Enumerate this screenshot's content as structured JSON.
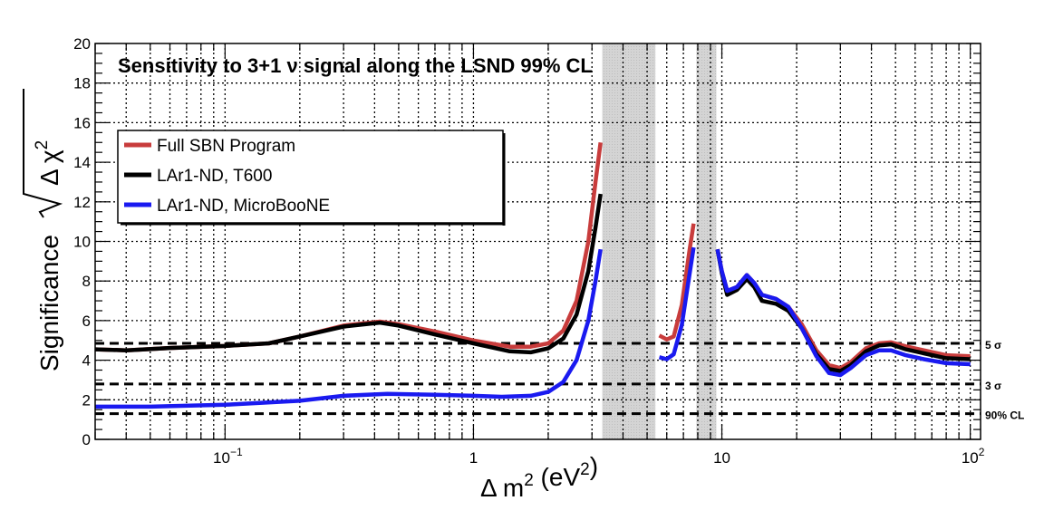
{
  "chart_data": {
    "type": "line",
    "title": "Sensitivity to 3+1 ν signal along the LSND 99% CL",
    "xlabel": "Δ m² (eV²)",
    "ylabel": "Significance √Δ χ²",
    "x_scale": "log",
    "xlim": [
      0.03,
      110
    ],
    "ylim": [
      0,
      20
    ],
    "y_ticks": [
      "0",
      "2",
      "4",
      "6",
      "8",
      "10",
      "12",
      "14",
      "16",
      "18",
      "20"
    ],
    "x_ticks": [
      {
        "value": 0.1,
        "base": "10",
        "exp": "−1"
      },
      {
        "value": 1,
        "base": "1",
        "exp": ""
      },
      {
        "value": 10,
        "base": "10",
        "exp": ""
      },
      {
        "value": 100,
        "base": "10",
        "exp": "2"
      }
    ],
    "grid": true,
    "legend_position": "upper-left",
    "series": [
      {
        "name": "Full SBN Program",
        "color": "#c83c3c",
        "segments": [
          [
            [
              0.03,
              4.55
            ],
            [
              0.04,
              4.5
            ],
            [
              0.06,
              4.62
            ],
            [
              0.1,
              4.72
            ],
            [
              0.15,
              4.85
            ],
            [
              0.2,
              5.2
            ],
            [
              0.3,
              5.75
            ],
            [
              0.42,
              5.95
            ],
            [
              0.5,
              5.82
            ],
            [
              0.7,
              5.45
            ],
            [
              1.0,
              5.0
            ],
            [
              1.4,
              4.68
            ],
            [
              1.7,
              4.68
            ],
            [
              2.0,
              4.85
            ],
            [
              2.3,
              5.5
            ],
            [
              2.6,
              7.0
            ],
            [
              2.9,
              10.0
            ],
            [
              3.1,
              13.0
            ],
            [
              3.25,
              15.0
            ]
          ],
          [
            [
              5.6,
              5.25
            ],
            [
              6.0,
              5.05
            ],
            [
              6.4,
              5.2
            ],
            [
              6.9,
              6.8
            ],
            [
              7.4,
              9.5
            ],
            [
              7.7,
              10.9
            ]
          ],
          [
            [
              9.6,
              9.6
            ],
            [
              10.0,
              8.5
            ],
            [
              10.5,
              7.5
            ],
            [
              11.5,
              7.7
            ],
            [
              12.6,
              8.3
            ],
            [
              13.5,
              7.9
            ],
            [
              14.5,
              7.3
            ],
            [
              16.5,
              7.1
            ],
            [
              18.5,
              6.7
            ],
            [
              21,
              5.8
            ],
            [
              24,
              4.5
            ],
            [
              27,
              3.75
            ],
            [
              30,
              3.6
            ],
            [
              33,
              3.9
            ],
            [
              38,
              4.6
            ],
            [
              43,
              4.85
            ],
            [
              48,
              4.9
            ],
            [
              55,
              4.7
            ],
            [
              65,
              4.5
            ],
            [
              80,
              4.25
            ],
            [
              100,
              4.2
            ]
          ]
        ]
      },
      {
        "name": "LAr1-ND, T600",
        "color": "#000000",
        "segments": [
          [
            [
              0.03,
              4.55
            ],
            [
              0.04,
              4.5
            ],
            [
              0.06,
              4.62
            ],
            [
              0.1,
              4.72
            ],
            [
              0.15,
              4.85
            ],
            [
              0.2,
              5.2
            ],
            [
              0.3,
              5.7
            ],
            [
              0.42,
              5.9
            ],
            [
              0.5,
              5.75
            ],
            [
              0.7,
              5.3
            ],
            [
              1.0,
              4.85
            ],
            [
              1.4,
              4.45
            ],
            [
              1.7,
              4.4
            ],
            [
              2.0,
              4.6
            ],
            [
              2.3,
              5.1
            ],
            [
              2.6,
              6.3
            ],
            [
              2.9,
              8.5
            ],
            [
              3.1,
              10.7
            ],
            [
              3.25,
              12.4
            ]
          ],
          [
            [
              9.6,
              9.6
            ],
            [
              10.0,
              8.4
            ],
            [
              10.5,
              7.3
            ],
            [
              11.5,
              7.55
            ],
            [
              12.6,
              8.1
            ],
            [
              13.5,
              7.7
            ],
            [
              14.5,
              7.0
            ],
            [
              16.5,
              6.85
            ],
            [
              18.5,
              6.5
            ],
            [
              21,
              5.6
            ],
            [
              24,
              4.3
            ],
            [
              27,
              3.55
            ],
            [
              30,
              3.45
            ],
            [
              33,
              3.75
            ],
            [
              38,
              4.45
            ],
            [
              43,
              4.75
            ],
            [
              48,
              4.8
            ],
            [
              55,
              4.55
            ],
            [
              65,
              4.35
            ],
            [
              80,
              4.1
            ],
            [
              100,
              4.05
            ]
          ]
        ]
      },
      {
        "name": "LAr1-ND, MicroBooNE",
        "color": "#1a1af0",
        "segments": [
          [
            [
              0.03,
              1.65
            ],
            [
              0.05,
              1.65
            ],
            [
              0.1,
              1.75
            ],
            [
              0.2,
              1.95
            ],
            [
              0.3,
              2.2
            ],
            [
              0.45,
              2.3
            ],
            [
              0.7,
              2.25
            ],
            [
              1.0,
              2.2
            ],
            [
              1.3,
              2.15
            ],
            [
              1.7,
              2.2
            ],
            [
              2.0,
              2.4
            ],
            [
              2.3,
              2.9
            ],
            [
              2.6,
              4.0
            ],
            [
              2.9,
              6.0
            ],
            [
              3.1,
              8.0
            ],
            [
              3.25,
              9.6
            ]
          ],
          [
            [
              5.6,
              4.15
            ],
            [
              6.0,
              4.05
            ],
            [
              6.4,
              4.3
            ],
            [
              6.9,
              5.8
            ],
            [
              7.4,
              8.3
            ],
            [
              7.7,
              9.7
            ]
          ],
          [
            [
              9.6,
              9.6
            ],
            [
              10.0,
              8.5
            ],
            [
              10.5,
              7.5
            ],
            [
              11.5,
              7.7
            ],
            [
              12.6,
              8.3
            ],
            [
              13.5,
              7.9
            ],
            [
              14.5,
              7.3
            ],
            [
              16.5,
              7.1
            ],
            [
              18.5,
              6.7
            ],
            [
              21,
              5.6
            ],
            [
              24,
              4.2
            ],
            [
              27,
              3.35
            ],
            [
              30,
              3.25
            ],
            [
              33,
              3.6
            ],
            [
              38,
              4.25
            ],
            [
              43,
              4.5
            ],
            [
              48,
              4.5
            ],
            [
              55,
              4.25
            ],
            [
              65,
              4.05
            ],
            [
              80,
              3.85
            ],
            [
              100,
              3.8
            ]
          ]
        ]
      }
    ],
    "reference_lines": [
      {
        "value": 4.85,
        "label": "5 σ"
      },
      {
        "value": 2.8,
        "label": "3 σ"
      },
      {
        "value": 1.3,
        "label": "90% CL"
      }
    ],
    "excluded_bands": [
      [
        3.3,
        5.4
      ],
      [
        7.9,
        9.5
      ]
    ]
  }
}
